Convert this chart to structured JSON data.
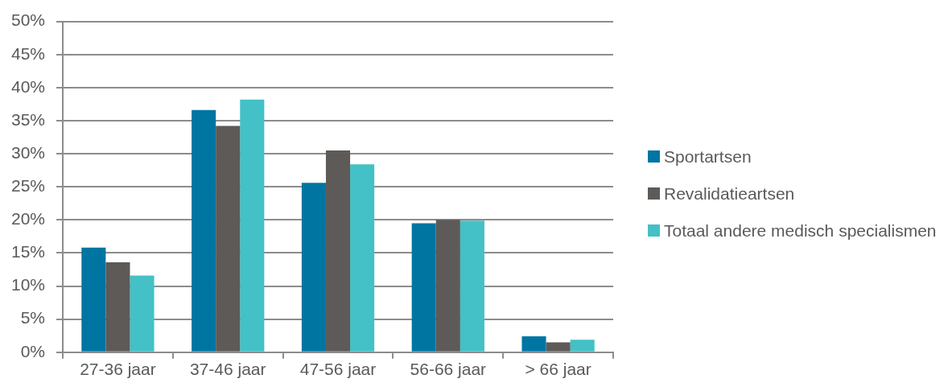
{
  "chart_data": {
    "type": "bar",
    "categories": [
      "27-36 jaar",
      "37-46 jaar",
      "47-56 jaar",
      "56-66 jaar",
      "> 66 jaar"
    ],
    "series": [
      {
        "name": "Sportartsen",
        "color": "#0075a2",
        "values": [
          15.8,
          36.6,
          25.6,
          19.5,
          2.4
        ]
      },
      {
        "name": "Revalidatieartsen",
        "color": "#5e5a57",
        "values": [
          13.6,
          34.2,
          30.5,
          20.0,
          1.5
        ]
      },
      {
        "name": "Totaal andere medisch specialismen",
        "color": "#43c1c6",
        "values": [
          11.6,
          38.2,
          28.4,
          19.9,
          1.9
        ]
      }
    ],
    "ylim": [
      0,
      50
    ],
    "yticks": [
      {
        "value": 0,
        "label": "0%"
      },
      {
        "value": 5,
        "label": "5%"
      },
      {
        "value": 10,
        "label": "10%"
      },
      {
        "value": 15,
        "label": "15%"
      },
      {
        "value": 20,
        "label": "20%"
      },
      {
        "value": 25,
        "label": "25%"
      },
      {
        "value": 30,
        "label": "30%"
      },
      {
        "value": 35,
        "label": "35%"
      },
      {
        "value": 40,
        "label": "40%"
      },
      {
        "value": 45,
        "label": "45%"
      },
      {
        "value": 50,
        "label": "50%"
      }
    ],
    "grid": "y",
    "legend": "right"
  }
}
